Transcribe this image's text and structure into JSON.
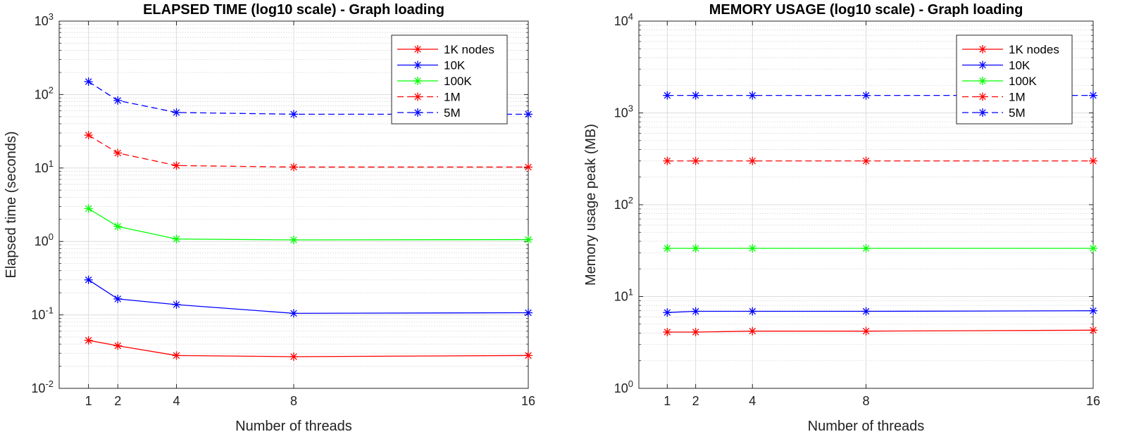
{
  "chart_data": [
    {
      "type": "line",
      "title": "ELAPSED TIME (log10 scale) - Graph loading",
      "xlabel": "Number of threads",
      "ylabel": "Elapsed time (seconds)",
      "yscale": "log10",
      "ylim": [
        0.01,
        1000
      ],
      "xlim": [
        0,
        16
      ],
      "x": [
        1,
        2,
        4,
        8,
        16
      ],
      "xticks": [
        "1",
        "2",
        "4",
        "8",
        "16"
      ],
      "yticks": [
        {
          "base": "10",
          "exp": "-2",
          "value": 0.01
        },
        {
          "base": "10",
          "exp": "-1",
          "value": 0.1
        },
        {
          "base": "10",
          "exp": "0",
          "value": 1
        },
        {
          "base": "10",
          "exp": "1",
          "value": 10
        },
        {
          "base": "10",
          "exp": "2",
          "value": 100
        },
        {
          "base": "10",
          "exp": "3",
          "value": 1000
        }
      ],
      "grid": true,
      "legend_position": "top-right",
      "series": [
        {
          "name": "1K nodes",
          "color": "#ff0000",
          "dash": "solid",
          "values": [
            0.045,
            0.038,
            0.028,
            0.027,
            0.028
          ]
        },
        {
          "name": "10K",
          "color": "#0000ff",
          "dash": "solid",
          "values": [
            0.3,
            0.165,
            0.138,
            0.105,
            0.107
          ]
        },
        {
          "name": "100K",
          "color": "#00ff00",
          "dash": "solid",
          "values": [
            2.8,
            1.6,
            1.08,
            1.05,
            1.06
          ]
        },
        {
          "name": "1M",
          "color": "#ff0000",
          "dash": "dashed",
          "values": [
            28,
            16,
            10.8,
            10.3,
            10.3
          ]
        },
        {
          "name": "5M",
          "color": "#0000ff",
          "dash": "dashed",
          "values": [
            150,
            83,
            57,
            54,
            54
          ]
        }
      ]
    },
    {
      "type": "line",
      "title": "MEMORY USAGE (log10 scale) - Graph loading",
      "xlabel": "Number of threads",
      "ylabel": "Memory usage peak (MB)",
      "yscale": "log10",
      "ylim": [
        1,
        10000
      ],
      "xlim": [
        0,
        16
      ],
      "x": [
        1,
        2,
        4,
        8,
        16
      ],
      "xticks": [
        "1",
        "2",
        "4",
        "8",
        "16"
      ],
      "yticks": [
        {
          "base": "10",
          "exp": "0",
          "value": 1
        },
        {
          "base": "10",
          "exp": "1",
          "value": 10
        },
        {
          "base": "10",
          "exp": "2",
          "value": 100
        },
        {
          "base": "10",
          "exp": "3",
          "value": 1000
        },
        {
          "base": "10",
          "exp": "4",
          "value": 10000
        }
      ],
      "grid": true,
      "legend_position": "top-right",
      "series": [
        {
          "name": "1K nodes",
          "color": "#ff0000",
          "dash": "solid",
          "values": [
            4.1,
            4.1,
            4.2,
            4.2,
            4.3
          ]
        },
        {
          "name": "10K",
          "color": "#0000ff",
          "dash": "solid",
          "values": [
            6.7,
            6.9,
            6.9,
            6.9,
            7.0
          ]
        },
        {
          "name": "100K",
          "color": "#00ff00",
          "dash": "solid",
          "values": [
            33.5,
            33.5,
            33.5,
            33.5,
            33.5
          ]
        },
        {
          "name": "1M",
          "color": "#ff0000",
          "dash": "dashed",
          "values": [
            300,
            300,
            300,
            300,
            300
          ]
        },
        {
          "name": "5M",
          "color": "#0000ff",
          "dash": "dashed",
          "values": [
            1550,
            1550,
            1550,
            1550,
            1550
          ]
        }
      ]
    }
  ]
}
